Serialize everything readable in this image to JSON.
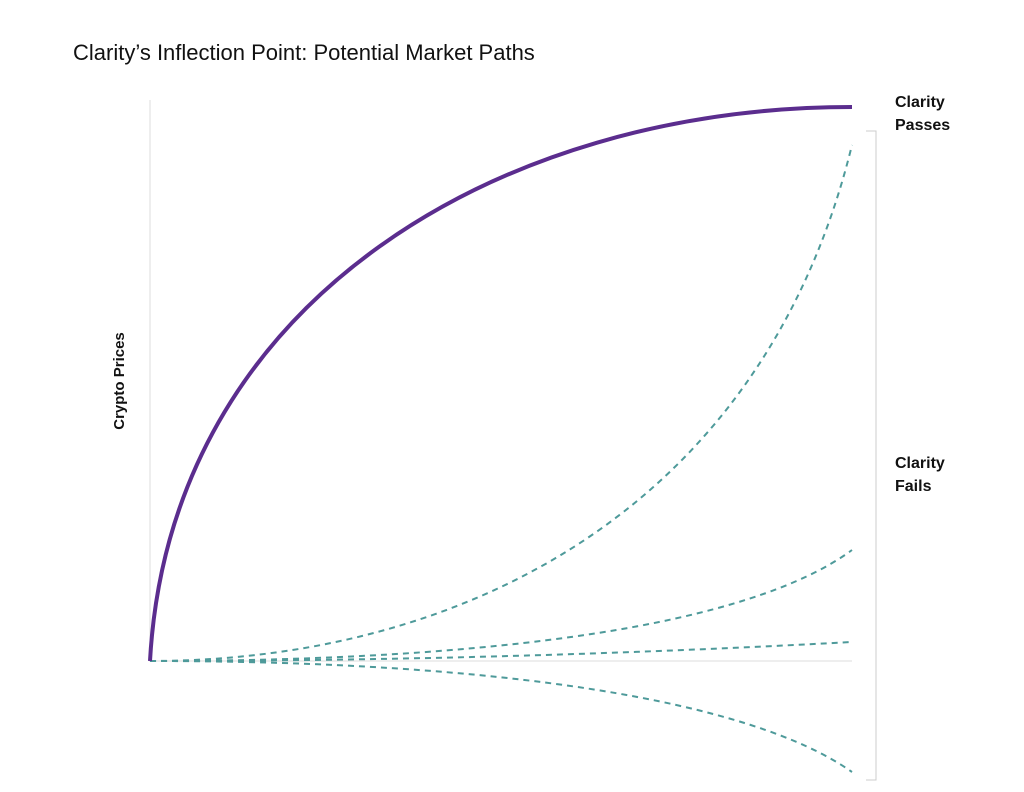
{
  "title": "Clarity’s Inflection Point: Potential Market Paths",
  "y_axis_label": "Crypto Prices",
  "labels": [
    {
      "lines": [
        "Clarity",
        "Passes"
      ]
    },
    {
      "lines": [
        "Clarity",
        "Fails"
      ]
    }
  ]
}
